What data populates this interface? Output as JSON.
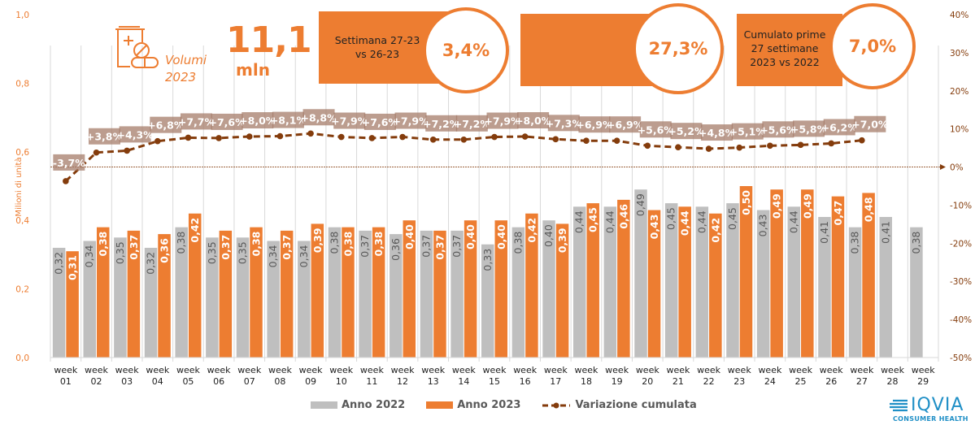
{
  "header": {
    "volumi_label_line1": "Volumi",
    "volumi_label_line2": "2023",
    "big_number": "11,1",
    "big_unit": "mln",
    "icon": "medicine-bottle-pills-icon"
  },
  "kpis": [
    {
      "label_lines": [
        "Settimana 27-23",
        "vs 26-23"
      ],
      "value": "3,4%"
    },
    {
      "label_lines": [],
      "value": "27,3%"
    },
    {
      "label_lines": [
        "Cumulato prime",
        "27 settimane",
        "2023 vs 2022"
      ],
      "value": "7,0%"
    }
  ],
  "colors": {
    "anno_2022": "#BFBFBF",
    "anno_2023": "#ED7D31",
    "variazione": "#843C0C",
    "label_bg": "#A67C6A",
    "axis_left_text": "#ED7D31",
    "axis_right_text": "#843C0C",
    "grid": "#D9D9D9",
    "logo": "#1F8FC6"
  },
  "chart_data": {
    "type": "bar",
    "title": "",
    "xlabel": "",
    "ylabel": "Milioni di unità",
    "ylim": [
      0,
      1.0
    ],
    "yticks": [
      "0,0",
      "0,2",
      "0,4",
      "0,6",
      "0,8",
      "1,0"
    ],
    "y2lim": [
      -0.5,
      0.4
    ],
    "y2ticks": [
      "-50%",
      "-40%",
      "-30%",
      "-20%",
      "-10%",
      "0%",
      "10%",
      "20%",
      "30%",
      "40%"
    ],
    "grid": "vertical",
    "legend_position": "bottom",
    "categories": [
      "week 01",
      "week 02",
      "week 03",
      "week 04",
      "week 05",
      "week 06",
      "week 07",
      "week 08",
      "week 09",
      "week 10",
      "week 11",
      "week 12",
      "week 13",
      "week 14",
      "week 15",
      "week 16",
      "week 17",
      "week 18",
      "week 19",
      "week 20",
      "week 21",
      "week 22",
      "week 23",
      "week 24",
      "week 25",
      "week 26",
      "week 27",
      "week 28",
      "week 29"
    ],
    "series": [
      {
        "name": "Anno 2022",
        "type": "bar",
        "axis": "left",
        "values": [
          0.32,
          0.34,
          0.35,
          0.32,
          0.38,
          0.35,
          0.35,
          0.34,
          0.34,
          0.38,
          0.37,
          0.36,
          0.37,
          0.37,
          0.33,
          0.38,
          0.4,
          0.44,
          0.44,
          0.49,
          0.45,
          0.44,
          0.45,
          0.43,
          0.44,
          0.41,
          0.38,
          0.41,
          0.38
        ],
        "labels": [
          "0,32",
          "0,34",
          "0,35",
          "0,32",
          "0,38",
          "0,35",
          "0,35",
          "0,34",
          "0,34",
          "0,38",
          "0,37",
          "0,36",
          "0,37",
          "0,37",
          "0,33",
          "0,38",
          "0,40",
          "0,44",
          "0,44",
          "0,49",
          "0,45",
          "0,44",
          "0,45",
          "0,43",
          "0,44",
          "0,41",
          "0,38",
          "0,41",
          "0,38"
        ]
      },
      {
        "name": "Anno 2023",
        "type": "bar",
        "axis": "left",
        "values": [
          0.31,
          0.38,
          0.37,
          0.36,
          0.42,
          0.37,
          0.38,
          0.37,
          0.39,
          0.38,
          0.38,
          0.4,
          0.37,
          0.4,
          0.4,
          0.42,
          0.39,
          0.45,
          0.46,
          0.43,
          0.44,
          0.42,
          0.5,
          0.49,
          0.49,
          0.47,
          0.48,
          null,
          null
        ],
        "labels": [
          "0,31",
          "0,38",
          "0,37",
          "0,36",
          "0,42",
          "0,37",
          "0,38",
          "0,37",
          "0,39",
          "0,38",
          "0,38",
          "0,40",
          "0,37",
          "0,40",
          "0,40",
          "0,42",
          "0,39",
          "0,45",
          "0,46",
          "0,43",
          "0,44",
          "0,42",
          "0,50",
          "0,49",
          "0,49",
          "0,47",
          "0,48",
          null,
          null
        ]
      },
      {
        "name": "Variazione cumulata",
        "type": "line",
        "axis": "right",
        "values": [
          -0.037,
          0.038,
          0.043,
          0.068,
          0.077,
          0.076,
          0.08,
          0.081,
          0.088,
          0.079,
          0.076,
          0.079,
          0.072,
          0.072,
          0.079,
          0.08,
          0.073,
          0.069,
          0.069,
          0.056,
          0.052,
          0.048,
          0.051,
          0.056,
          0.058,
          0.062,
          0.07,
          null,
          null
        ],
        "labels": [
          "-3,7%",
          "+3,8%",
          "+4,3%",
          "+6,8%",
          "+7,7%",
          "+7,6%",
          "+8,0%",
          "+8,1%",
          "+8,8%",
          "+7,9%",
          "+7,6%",
          "+7,9%",
          "+7,2%",
          "+7,2%",
          "+7,9%",
          "+8,0%",
          "+7,3%",
          "+6,9%",
          "+6,9%",
          "+5,6%",
          "+5,2%",
          "+4,8%",
          "+5,1%",
          "+5,6%",
          "+5,8%",
          "+6,2%",
          "+7,0%",
          null,
          null
        ]
      }
    ]
  },
  "legend": {
    "items": [
      "Anno 2022",
      "Anno 2023",
      "Variazione cumulata"
    ]
  },
  "logo": {
    "brand": "IQVIA",
    "subtitle": "CONSUMER HEALTH"
  }
}
